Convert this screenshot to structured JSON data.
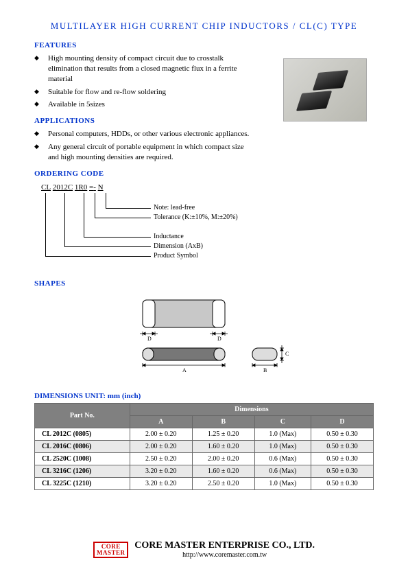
{
  "title": "MULTILAYER HIGH CURRENT CHIP INDUCTORS /  CL(C) TYPE",
  "sections": {
    "features": {
      "head": "FEATURES",
      "items": [
        "High mounting density of compact circuit due to crosstalk elimination that results from a closed magnetic flux in a ferrite material",
        "Suitable for flow and re-flow soldering",
        "Available in 5sizes"
      ]
    },
    "applications": {
      "head": "APPLICATIONS",
      "items": [
        "Personal computers, HDDs, or other various electronic appliances.",
        "Any general circuit of portable equipment in which compact size and high mounting densities are required."
      ]
    },
    "ordering": {
      "head": "ORDERING CODE",
      "code_parts": [
        "CL",
        "2012C",
        "1R0",
        "=",
        "-",
        "N"
      ],
      "annotations": [
        "Note: lead-free",
        "Tolerance (K:±10%, M:±20%)",
        "Inductance",
        "Dimension (AxB)",
        "Product Symbol"
      ]
    },
    "shapes": {
      "head": "SHAPES",
      "labels": [
        "D",
        "D",
        "A",
        "C",
        "B"
      ]
    },
    "dimensions": {
      "head": "DIMENSIONS UNIT: mm (inch)",
      "header_part": "Part No.",
      "header_dim": "Dimensions",
      "cols": [
        "A",
        "B",
        "C",
        "D"
      ],
      "rows": [
        {
          "part": "CL 2012C (0805)",
          "a": "2.00 ± 0.20",
          "b": "1.25 ± 0.20",
          "c": "1.0 (Max)",
          "d": "0.50 ± 0.30",
          "shade": false
        },
        {
          "part": "CL 2016C (0806)",
          "a": "2.00 ± 0.20",
          "b": "1.60 ± 0.20",
          "c": "1.0 (Max)",
          "d": "0.50 ± 0.30",
          "shade": true
        },
        {
          "part": "CL 2520C (1008)",
          "a": "2.50 ± 0.20",
          "b": "2.00 ± 0.20",
          "c": "0.6 (Max)",
          "d": "0.50 ± 0.30",
          "shade": false
        },
        {
          "part": "CL 3216C (1206)",
          "a": "3.20 ± 0.20",
          "b": "1.60 ± 0.20",
          "c": "0.6 (Max)",
          "d": "0.50 ± 0.30",
          "shade": true
        },
        {
          "part": "CL 3225C (1210)",
          "a": "3.20 ± 0.20",
          "b": "2.50 ± 0.20",
          "c": "1.0 (Max)",
          "d": "0.50 ± 0.30",
          "shade": false
        }
      ]
    }
  },
  "footer": {
    "logo_top": "CORE",
    "logo_bottom": "MASTER",
    "company": "CORE MASTER ENTERPRISE CO., LTD.",
    "url": "http://www.coremaster.com.tw"
  }
}
